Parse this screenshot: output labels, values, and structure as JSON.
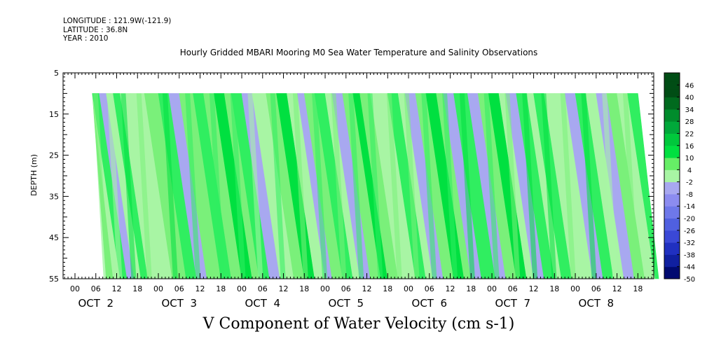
{
  "header": {
    "longitude": "LONGITUDE : 121.9W(-121.9)",
    "latitude": "LATITUDE : 36.8N",
    "year": "YEAR : 2010"
  },
  "chart_data": {
    "type": "heatmap",
    "title": "Hourly Gridded MBARI Mooring M0 Sea Water Temperature and Salinity Observations",
    "xlabel": "V Component of Water Velocity (cm s-1)",
    "ylabel": "DEPTH (m)",
    "y_range": [
      5,
      55
    ],
    "y_ticks": [
      "5",
      "15",
      "25",
      "35",
      "45",
      "55"
    ],
    "data_depth_range": [
      10,
      55
    ],
    "x_hour_ticks": [
      "00",
      "06",
      "12",
      "18",
      "00",
      "06",
      "12",
      "18",
      "00",
      "06",
      "12",
      "18",
      "00",
      "06",
      "12",
      "18",
      "00",
      "06",
      "12",
      "18",
      "00",
      "06",
      "12",
      "18",
      "00",
      "06",
      "12",
      "18"
    ],
    "x_day_labels": [
      "OCT  2",
      "OCT  3",
      "OCT  4",
      "OCT  5",
      "OCT  6",
      "OCT  7",
      "OCT  8"
    ],
    "colorbar_labels": [
      "46",
      "40",
      "34",
      "28",
      "22",
      "16",
      "10",
      "4",
      "-2",
      "-8",
      "-14",
      "-20",
      "-26",
      "-32",
      "-38",
      "-44",
      "-50"
    ],
    "colorbar_range": [
      -50,
      52
    ],
    "band_velocities": [
      [
        5,
        4
      ],
      [
        7,
        2
      ],
      [
        9,
        14
      ],
      [
        11,
        -3
      ],
      [
        13,
        3
      ],
      [
        15,
        12
      ],
      [
        17,
        -2
      ],
      [
        20,
        2
      ],
      [
        24,
        5
      ],
      [
        28,
        10
      ],
      [
        31,
        -6
      ],
      [
        34,
        4
      ],
      [
        38,
        12
      ],
      [
        41,
        6
      ],
      [
        44,
        18
      ],
      [
        47,
        4
      ],
      [
        49,
        10
      ],
      [
        52,
        -3
      ],
      [
        55,
        2
      ],
      [
        59,
        7
      ],
      [
        62,
        16
      ],
      [
        65,
        2
      ],
      [
        68,
        -6
      ],
      [
        70,
        4
      ],
      [
        73,
        14
      ],
      [
        76,
        1
      ],
      [
        78,
        -4
      ],
      [
        81,
        6
      ],
      [
        84,
        18
      ],
      [
        86,
        8
      ],
      [
        89,
        -2
      ],
      [
        92,
        3
      ],
      [
        94,
        15
      ],
      [
        97,
        2
      ],
      [
        99,
        -4
      ],
      [
        102,
        5
      ],
      [
        105,
        18
      ],
      [
        108,
        4
      ],
      [
        110,
        -6
      ],
      [
        113,
        12
      ],
      [
        117,
        -4
      ],
      [
        120,
        6
      ],
      [
        123,
        16
      ],
      [
        126,
        2
      ],
      [
        128,
        -3
      ],
      [
        131,
        12
      ],
      [
        134,
        3
      ],
      [
        136,
        14
      ],
      [
        139,
        -2
      ],
      [
        142,
        2
      ],
      [
        145,
        -6
      ],
      [
        148,
        10
      ],
      [
        151,
        1
      ],
      [
        154,
        -4
      ],
      [
        157,
        8
      ],
      [
        160,
        2
      ],
      [
        163,
        14
      ],
      [
        166,
        -8
      ]
    ]
  }
}
